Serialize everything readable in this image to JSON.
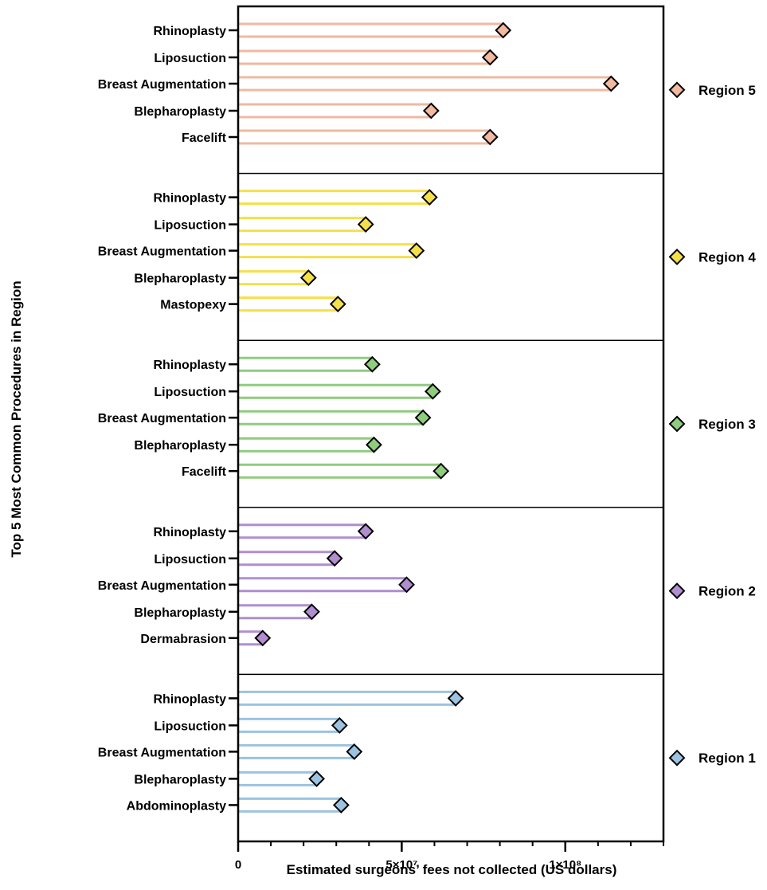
{
  "chart_data": {
    "type": "bar",
    "ylabel": "Top 5 Most Common Procedures in Region",
    "xlabel": "Estimated surgeons’ fees not collected (US dollars)",
    "xlim": [
      0,
      130000000
    ],
    "x_ticks": [
      {
        "value": 0,
        "label": "0"
      },
      {
        "value": 50000000,
        "label": "5×10⁷"
      },
      {
        "value": 100000000,
        "label": "1×10⁸"
      }
    ],
    "x_minor_tick_step": 10000000,
    "legend_placement": "right",
    "panels": [
      {
        "region": "Region 5",
        "color": "#f0b9a0",
        "categories": [
          "Rhinoplasty",
          "Liposuction",
          "Breast Augmentation",
          "Blepharoplasty",
          "Facelift"
        ],
        "values": [
          81000000,
          77000000,
          114000000,
          59000000,
          77000000
        ]
      },
      {
        "region": "Region 4",
        "color": "#f5e04a",
        "categories": [
          "Rhinoplasty",
          "Liposuction",
          "Breast Augmentation",
          "Blepharoplasty",
          "Mastopexy"
        ],
        "values": [
          58500000,
          39000000,
          54500000,
          21500000,
          30500000
        ]
      },
      {
        "region": "Region 3",
        "color": "#8fcc7e",
        "categories": [
          "Rhinoplasty",
          "Liposuction",
          "Breast Augmentation",
          "Blepharoplasty",
          "Facelift"
        ],
        "values": [
          41000000,
          59500000,
          56500000,
          41500000,
          62000000
        ]
      },
      {
        "region": "Region 2",
        "color": "#b08ed0",
        "categories": [
          "Rhinoplasty",
          "Liposuction",
          "Breast Augmentation",
          "Blepharoplasty",
          "Dermabrasion"
        ],
        "values": [
          39000000,
          29500000,
          51500000,
          22500000,
          7500000
        ]
      },
      {
        "region": "Region 1",
        "color": "#9cc3e0",
        "categories": [
          "Rhinoplasty",
          "Liposuction",
          "Breast Augmentation",
          "Blepharoplasty",
          "Abdominoplasty"
        ],
        "values": [
          66500000,
          31000000,
          35500000,
          24000000,
          31500000
        ]
      }
    ]
  }
}
